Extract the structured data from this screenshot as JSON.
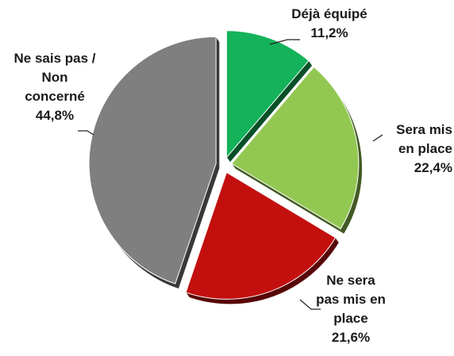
{
  "chart_data": {
    "type": "pie",
    "categories": [
      "Déjà équipé",
      "Sera mis en place",
      "Ne sera pas mis en place",
      "Ne sais pas / Non concerné"
    ],
    "values": [
      11.2,
      22.4,
      21.6,
      44.8
    ],
    "value_labels": [
      "11,2%",
      "22,4%",
      "21,6%",
      "44,8%"
    ],
    "colors": [
      "#14b25a",
      "#92c851",
      "#c3100f",
      "#7f7f7f"
    ]
  }
}
